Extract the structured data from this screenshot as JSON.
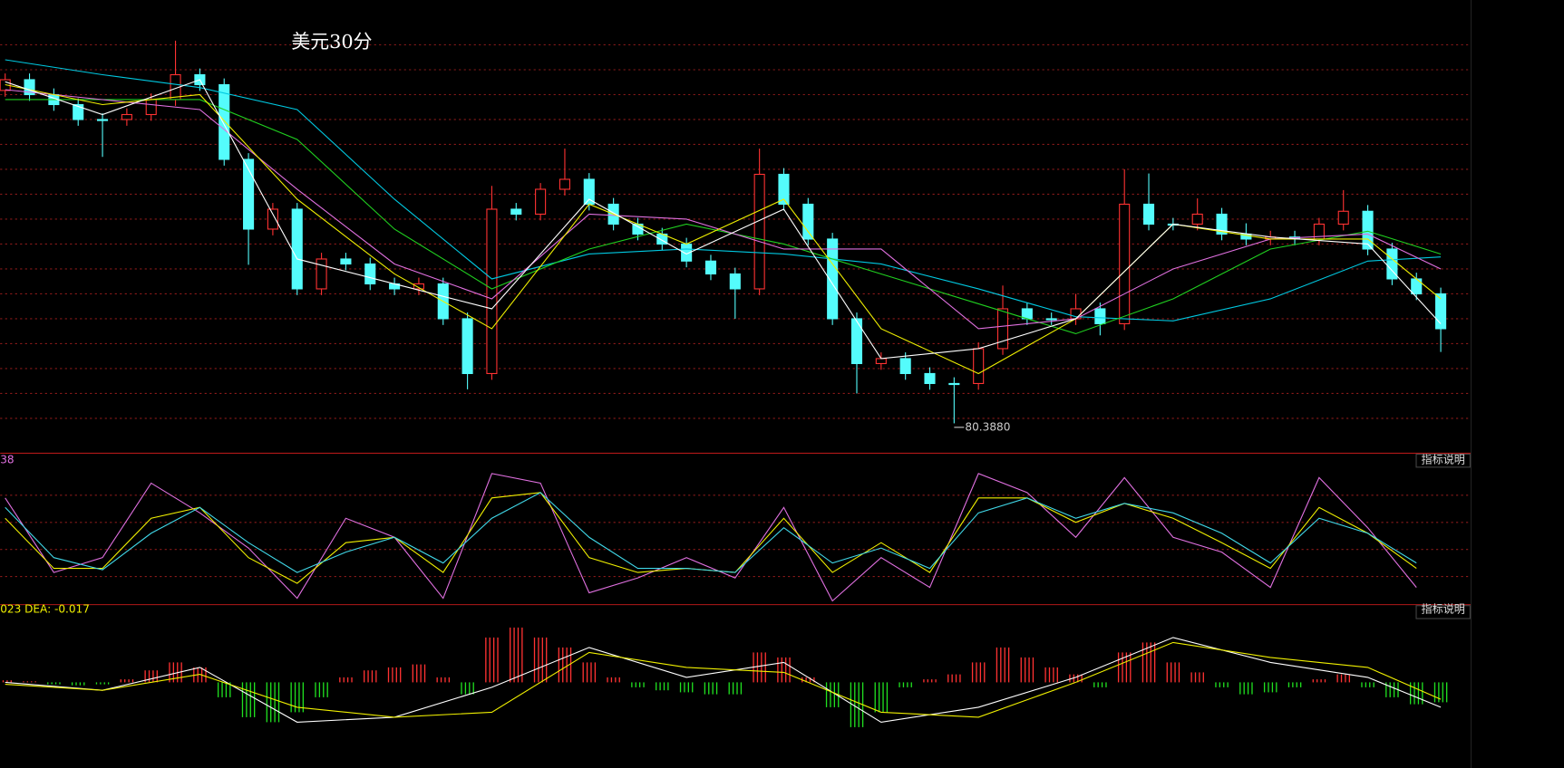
{
  "chart_data": [
    {
      "type": "candlestick",
      "title": "美元30分",
      "open": [
        81.19,
        81.216,
        81.18,
        81.156,
        81.12,
        81.12,
        81.132,
        81.168,
        81.228,
        81.204,
        81.024,
        80.856,
        80.904,
        80.712,
        80.784,
        80.772,
        80.724,
        80.712,
        80.724,
        80.64,
        80.508,
        80.904,
        80.892,
        80.952,
        80.976,
        80.916,
        80.868,
        80.844,
        80.82,
        80.779,
        80.748,
        80.712,
        80.988,
        80.916,
        80.832,
        80.64,
        80.532,
        80.544,
        80.508,
        80.484,
        80.484,
        80.568,
        80.664,
        80.64,
        80.64,
        80.664,
        80.628,
        80.916,
        80.868,
        80.868,
        80.892,
        80.844,
        80.832,
        80.837,
        80.832,
        80.868,
        80.899,
        80.808,
        80.736,
        80.7
      ],
      "high": [
        81.231,
        81.231,
        81.195,
        81.171,
        81.135,
        81.147,
        81.183,
        81.31,
        81.243,
        81.219,
        81.039,
        80.919,
        80.919,
        80.799,
        80.799,
        80.787,
        80.739,
        80.739,
        80.739,
        80.655,
        80.96,
        80.919,
        80.967,
        81.05,
        80.991,
        80.931,
        80.883,
        80.859,
        80.835,
        80.794,
        80.763,
        81.05,
        81.003,
        80.931,
        80.847,
        80.655,
        80.559,
        80.559,
        80.523,
        80.499,
        80.583,
        80.72,
        80.679,
        80.655,
        80.7,
        80.679,
        81.0,
        80.99,
        80.883,
        80.93,
        80.907,
        80.87,
        80.852,
        80.852,
        80.883,
        80.95,
        80.914,
        80.823,
        80.751,
        80.715
      ],
      "low": [
        81.175,
        81.165,
        81.141,
        81.105,
        81.03,
        81.105,
        81.117,
        81.153,
        81.189,
        81.009,
        80.77,
        80.841,
        80.697,
        80.697,
        80.757,
        80.709,
        80.697,
        80.697,
        80.625,
        80.47,
        80.493,
        80.877,
        80.877,
        80.937,
        80.901,
        80.853,
        80.829,
        80.805,
        80.764,
        80.733,
        80.64,
        80.697,
        80.901,
        80.817,
        80.625,
        80.46,
        80.517,
        80.493,
        80.469,
        80.388,
        80.469,
        80.553,
        80.625,
        80.625,
        80.625,
        80.6,
        80.613,
        80.853,
        80.853,
        80.853,
        80.829,
        80.817,
        80.817,
        80.817,
        80.817,
        80.853,
        80.793,
        80.721,
        80.685,
        80.56
      ],
      "close": [
        81.216,
        81.18,
        81.156,
        81.12,
        81.12,
        81.132,
        81.168,
        81.228,
        81.204,
        81.024,
        80.856,
        80.904,
        80.712,
        80.784,
        80.772,
        80.724,
        80.712,
        80.724,
        80.64,
        80.508,
        80.904,
        80.892,
        80.952,
        80.976,
        80.916,
        80.868,
        80.844,
        80.82,
        80.779,
        80.748,
        80.712,
        80.988,
        80.916,
        80.832,
        80.64,
        80.532,
        80.544,
        80.508,
        80.484,
        80.484,
        80.568,
        80.664,
        80.64,
        80.64,
        80.664,
        80.628,
        80.916,
        80.868,
        80.868,
        80.892,
        80.844,
        80.832,
        80.837,
        80.832,
        80.868,
        80.899,
        80.808,
        80.736,
        80.7,
        80.616
      ],
      "min_label": "80.3880",
      "up_color": "#ff3232",
      "down_color": "#54fcfc",
      "series": [
        {
          "color": "#00c8e0",
          "x": [
            0,
            4,
            8,
            12,
            16,
            20,
            24,
            28,
            32,
            36,
            40,
            44,
            48,
            52,
            56,
            59
          ],
          "values": [
            81.264,
            81.228,
            81.197,
            81.144,
            80.928,
            80.736,
            80.796,
            80.808,
            80.796,
            80.772,
            80.712,
            80.645,
            80.635,
            80.688,
            80.779,
            80.789
          ]
        },
        {
          "color": "#20d020",
          "x": [
            0,
            4,
            8,
            12,
            16,
            20,
            24,
            28,
            32,
            36,
            40,
            44,
            48,
            52,
            56,
            59
          ],
          "values": [
            81.168,
            81.168,
            81.168,
            81.072,
            80.856,
            80.712,
            80.808,
            80.868,
            80.82,
            80.748,
            80.676,
            80.604,
            80.688,
            80.808,
            80.851,
            80.796
          ]
        },
        {
          "color": "#e070e0",
          "x": [
            0,
            4,
            8,
            12,
            16,
            20,
            24,
            28,
            32,
            36,
            40,
            44,
            48,
            52,
            56,
            59
          ],
          "values": [
            81.192,
            81.168,
            81.144,
            80.952,
            80.772,
            80.688,
            80.892,
            80.88,
            80.808,
            80.808,
            80.616,
            80.64,
            80.76,
            80.832,
            80.844,
            80.76
          ]
        },
        {
          "color": "#f0f000",
          "x": [
            0,
            4,
            8,
            12,
            16,
            20,
            24,
            28,
            32,
            36,
            40,
            44,
            48,
            52,
            56,
            59
          ],
          "values": [
            81.204,
            81.156,
            81.18,
            80.928,
            80.748,
            80.616,
            80.916,
            80.82,
            80.928,
            80.616,
            80.508,
            80.64,
            80.868,
            80.832,
            80.832,
            80.688
          ]
        },
        {
          "color": "#ffffff",
          "x": [
            0,
            4,
            8,
            12,
            16,
            20,
            24,
            28,
            32,
            36,
            40,
            44,
            48,
            52,
            56,
            59
          ],
          "values": [
            81.211,
            81.132,
            81.216,
            80.784,
            80.724,
            80.664,
            80.928,
            80.796,
            80.904,
            80.544,
            80.568,
            80.64,
            80.868,
            80.837,
            80.82,
            80.628
          ]
        }
      ],
      "ylim": [
        80.34,
        81.324
      ],
      "yticks": [
        80.4,
        80.46,
        80.52,
        80.58,
        80.64,
        80.7,
        80.76,
        80.82,
        80.88,
        80.94,
        81,
        81.06,
        81.12,
        81.18,
        81.24,
        81.3
      ],
      "grid": true
    },
    {
      "type": "line",
      "label": "38",
      "label_color": "#e070e0",
      "button": "指标说明",
      "series": [
        {
          "color": "#e070e0",
          "x": [
            0,
            2,
            4,
            6,
            8,
            10,
            12,
            14,
            16,
            18,
            20,
            22,
            24,
            26,
            28,
            30,
            32,
            34,
            36,
            38,
            40,
            42,
            44,
            46,
            48,
            50,
            52,
            54,
            56,
            58
          ],
          "values": [
            78,
            23,
            34,
            89,
            67,
            41,
            4,
            63,
            49,
            4,
            96,
            89,
            8,
            19,
            34,
            19,
            71,
            2,
            34,
            12,
            96,
            82,
            49,
            93,
            49,
            38,
            12,
            93,
            56,
            12
          ]
        },
        {
          "color": "#f0f000",
          "x": [
            0,
            2,
            4,
            6,
            8,
            10,
            12,
            14,
            16,
            18,
            20,
            22,
            24,
            26,
            28,
            30,
            32,
            34,
            36,
            38,
            40,
            42,
            44,
            46,
            48,
            50,
            52,
            54,
            56,
            58
          ],
          "values": [
            63,
            26,
            26,
            63,
            71,
            34,
            15,
            45,
            49,
            23,
            78,
            82,
            34,
            23,
            26,
            23,
            63,
            23,
            45,
            23,
            78,
            78,
            60,
            74,
            63,
            45,
            26,
            71,
            52,
            26
          ]
        },
        {
          "color": "#40d8e8",
          "x": [
            0,
            2,
            4,
            6,
            8,
            10,
            12,
            14,
            16,
            18,
            20,
            22,
            24,
            26,
            28,
            30,
            32,
            34,
            36,
            38,
            40,
            42,
            44,
            46,
            48,
            50,
            52,
            54,
            56,
            58
          ],
          "values": [
            71,
            34,
            25,
            52,
            71,
            45,
            23,
            38,
            49,
            30,
            63,
            82,
            49,
            26,
            26,
            23,
            56,
            30,
            41,
            26,
            67,
            78,
            63,
            74,
            67,
            52,
            30,
            63,
            52,
            30
          ]
        }
      ],
      "ylim": [
        0,
        100
      ],
      "yticks": [
        20,
        40,
        60,
        80
      ],
      "grid": true
    },
    {
      "type": "macd",
      "label": "023 DEA: -0.017",
      "label_color": "#f0f000",
      "button": "指标说明",
      "histogram": [
        0.002,
        0.001,
        -0.002,
        -0.003,
        -0.002,
        0.003,
        0.012,
        0.02,
        0.015,
        -0.015,
        -0.035,
        -0.04,
        -0.03,
        -0.015,
        0.005,
        0.012,
        0.015,
        0.018,
        0.005,
        -0.012,
        0.045,
        0.055,
        0.045,
        0.035,
        0.02,
        0.005,
        -0.005,
        -0.008,
        -0.01,
        -0.012,
        -0.012,
        0.03,
        0.025,
        0.005,
        -0.025,
        -0.045,
        -0.03,
        -0.005,
        0.003,
        0.008,
        0.02,
        0.035,
        0.025,
        0.015,
        0.008,
        -0.005,
        0.03,
        0.04,
        0.02,
        0.01,
        -0.005,
        -0.012,
        -0.01,
        -0.005,
        0.003,
        0.008,
        -0.005,
        -0.015,
        -0.022,
        -0.02
      ],
      "up_color": "#ff3232",
      "down_color": "#20e020",
      "series": [
        {
          "color": "#ffffff",
          "x": [
            0,
            4,
            8,
            12,
            16,
            20,
            24,
            28,
            32,
            36,
            40,
            44,
            48,
            52,
            56,
            59
          ],
          "values": [
            0,
            -0.008,
            0.015,
            -0.04,
            -0.035,
            -0.005,
            0.035,
            0.005,
            0.02,
            -0.04,
            -0.025,
            0.005,
            0.045,
            0.02,
            0.005,
            -0.025
          ]
        },
        {
          "color": "#f0f000",
          "x": [
            0,
            4,
            8,
            12,
            16,
            20,
            24,
            28,
            32,
            36,
            40,
            44,
            48,
            52,
            56,
            59
          ],
          "values": [
            -0.002,
            -0.008,
            0.008,
            -0.025,
            -0.035,
            -0.03,
            0.03,
            0.015,
            0.01,
            -0.03,
            -0.035,
            0,
            0.04,
            0.025,
            0.015,
            -0.017
          ]
        }
      ],
      "ylim": [
        -0.075,
        0.065
      ],
      "grid": false
    }
  ]
}
